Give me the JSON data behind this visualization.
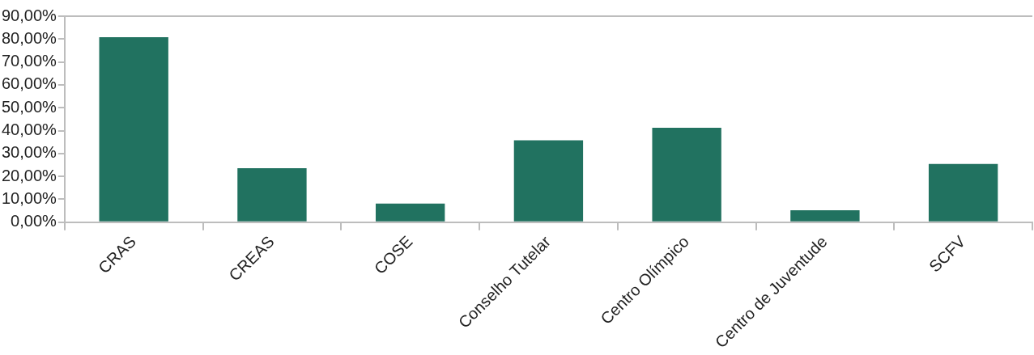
{
  "chart_data": {
    "type": "bar",
    "categories": [
      "CRAS",
      "CREAS",
      "COSE",
      "Conselho Tutelar",
      "Centro Olímpico",
      "Centro de Juventude",
      "SCFV"
    ],
    "values": [
      80.8,
      23.6,
      8.1,
      35.8,
      41.2,
      5.2,
      25.4
    ],
    "color": "#217260",
    "ylim": [
      0,
      90
    ],
    "yticks": [
      {
        "value": 0,
        "label": "0,00%"
      },
      {
        "value": 10,
        "label": "10,00%"
      },
      {
        "value": 20,
        "label": "20,00%"
      },
      {
        "value": 30,
        "label": "30,00%"
      },
      {
        "value": 40,
        "label": "40,00%"
      },
      {
        "value": 50,
        "label": "50,00%"
      },
      {
        "value": 60,
        "label": "60,00%"
      },
      {
        "value": 70,
        "label": "70,00%"
      },
      {
        "value": 80,
        "label": "80,00%"
      },
      {
        "value": 90,
        "label": "90,00%"
      }
    ],
    "grid": false,
    "legend": false
  }
}
